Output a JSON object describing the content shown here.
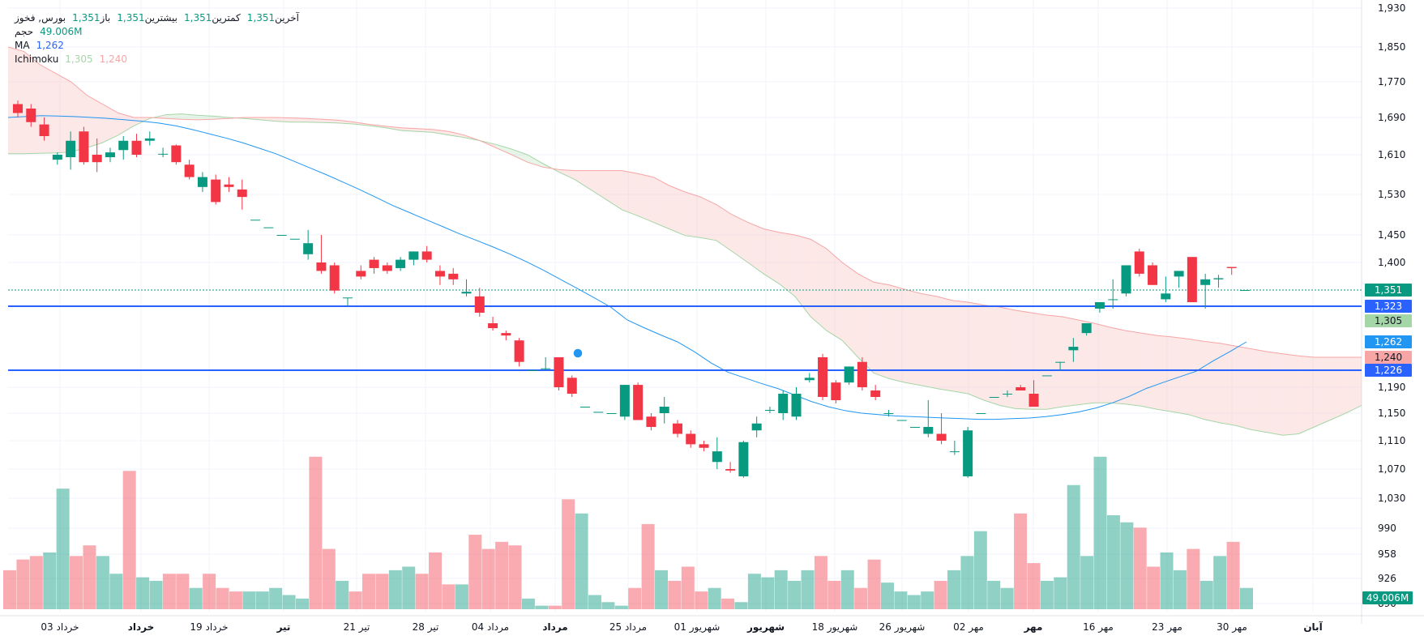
{
  "chart_data": {
    "type": "candlestick",
    "symbol": "فخوز",
    "market": "بورس",
    "ohlc_header": {
      "open_label": "باز",
      "open": "1,351",
      "high_label": "بیشترین",
      "high": "1,351",
      "low_label": "کمترین",
      "low": "1,351",
      "close_label": "آخرین",
      "close": "1,351"
    },
    "volume_label": "حجم",
    "volume_value": "49.006M",
    "ma_label": "MA",
    "ma_value": "1,262",
    "ichimoku_label": "Ichimoku",
    "ichimoku_values": [
      "1,305",
      "1,240"
    ],
    "y_axis_ticks": [
      "1,930",
      "1,850",
      "1,770",
      "1,690",
      "1,610",
      "1,530",
      "1,450",
      "1,400",
      "1,190",
      "1,150",
      "1,110",
      "1,070",
      "1,030",
      "990",
      "958",
      "926",
      "890"
    ],
    "price_badges": [
      {
        "value": "1,351",
        "color": "#089981",
        "text_color": "#ffffff"
      },
      {
        "value": "1,323",
        "color": "#2962ff",
        "text_color": "#ffffff"
      },
      {
        "value": "1,305",
        "color": "#a5d6a7",
        "text_color": "#131722"
      },
      {
        "value": "1,262",
        "color": "#2196f3",
        "text_color": "#ffffff"
      },
      {
        "value": "1,240",
        "color": "#f7a5a5",
        "text_color": "#131722"
      },
      {
        "value": "1,226",
        "color": "#2962ff",
        "text_color": "#ffffff"
      }
    ],
    "volume_badge": {
      "value": "49.006M",
      "color": "#089981"
    },
    "x_axis_labels": [
      {
        "label": "03 خرداد",
        "bold": false
      },
      {
        "label": "خرداد",
        "bold": true
      },
      {
        "label": "19 خرداد",
        "bold": false
      },
      {
        "label": "تیر",
        "bold": true
      },
      {
        "label": "21 تیر",
        "bold": false
      },
      {
        "label": "28 تیر",
        "bold": false
      },
      {
        "label": "04 مرداد",
        "bold": false
      },
      {
        "label": "مرداد",
        "bold": true
      },
      {
        "label": "25 مرداد",
        "bold": false
      },
      {
        "label": "01 شهریور",
        "bold": false
      },
      {
        "label": "شهریور",
        "bold": true
      },
      {
        "label": "18 شهریور",
        "bold": false
      },
      {
        "label": "26 شهریور",
        "bold": false
      },
      {
        "label": "02 مهر",
        "bold": false
      },
      {
        "label": "مهر",
        "bold": true
      },
      {
        "label": "16 مهر",
        "bold": false
      },
      {
        "label": "23 مهر",
        "bold": false
      },
      {
        "label": "30 مهر",
        "bold": false
      },
      {
        "label": "آبان",
        "bold": true
      }
    ],
    "horizontal_lines": [
      1323,
      1226
    ],
    "last_price_line": 1351,
    "candles": [
      {
        "o": 1720,
        "h": 1728,
        "l": 1690,
        "c": 1700
      },
      {
        "o": 1710,
        "h": 1720,
        "l": 1670,
        "c": 1680
      },
      {
        "o": 1675,
        "h": 1690,
        "l": 1640,
        "c": 1650
      },
      {
        "o": 1600,
        "h": 1615,
        "l": 1590,
        "c": 1610
      },
      {
        "o": 1605,
        "h": 1660,
        "l": 1580,
        "c": 1640
      },
      {
        "o": 1660,
        "h": 1670,
        "l": 1590,
        "c": 1595
      },
      {
        "o": 1610,
        "h": 1645,
        "l": 1575,
        "c": 1595
      },
      {
        "o": 1605,
        "h": 1625,
        "l": 1595,
        "c": 1615
      },
      {
        "o": 1620,
        "h": 1650,
        "l": 1600,
        "c": 1640
      },
      {
        "o": 1640,
        "h": 1655,
        "l": 1605,
        "c": 1610
      },
      {
        "o": 1640,
        "h": 1660,
        "l": 1630,
        "c": 1645
      },
      {
        "o": 1612,
        "h": 1625,
        "l": 1605,
        "c": 1612
      },
      {
        "o": 1630,
        "h": 1632,
        "l": 1590,
        "c": 1595
      },
      {
        "o": 1590,
        "h": 1600,
        "l": 1560,
        "c": 1565
      },
      {
        "o": 1545,
        "h": 1575,
        "l": 1535,
        "c": 1565
      },
      {
        "o": 1560,
        "h": 1570,
        "l": 1510,
        "c": 1515
      },
      {
        "o": 1550,
        "h": 1565,
        "l": 1535,
        "c": 1545
      },
      {
        "o": 1540,
        "h": 1560,
        "l": 1500,
        "c": 1525
      },
      {
        "o": 1480,
        "h": 1480,
        "l": 1480,
        "c": 1480
      },
      {
        "o": 1465,
        "h": 1465,
        "l": 1465,
        "c": 1465
      },
      {
        "o": 1450,
        "h": 1450,
        "l": 1450,
        "c": 1450
      },
      {
        "o": 1443,
        "h": 1443,
        "l": 1443,
        "c": 1443
      },
      {
        "o": 1415,
        "h": 1460,
        "l": 1405,
        "c": 1435
      },
      {
        "o": 1400,
        "h": 1450,
        "l": 1380,
        "c": 1385
      },
      {
        "o": 1395,
        "h": 1400,
        "l": 1345,
        "c": 1350
      },
      {
        "o": 1338,
        "h": 1338,
        "l": 1323,
        "c": 1338
      },
      {
        "o": 1385,
        "h": 1395,
        "l": 1370,
        "c": 1375
      },
      {
        "o": 1405,
        "h": 1410,
        "l": 1380,
        "c": 1390
      },
      {
        "o": 1395,
        "h": 1400,
        "l": 1380,
        "c": 1385
      },
      {
        "o": 1390,
        "h": 1410,
        "l": 1385,
        "c": 1405
      },
      {
        "o": 1405,
        "h": 1420,
        "l": 1395,
        "c": 1420
      },
      {
        "o": 1420,
        "h": 1430,
        "l": 1400,
        "c": 1405
      },
      {
        "o": 1385,
        "h": 1395,
        "l": 1360,
        "c": 1375
      },
      {
        "o": 1380,
        "h": 1390,
        "l": 1360,
        "c": 1370
      },
      {
        "o": 1345,
        "h": 1370,
        "l": 1340,
        "c": 1348
      },
      {
        "o": 1340,
        "h": 1355,
        "l": 1310,
        "c": 1315
      },
      {
        "o": 1300,
        "h": 1310,
        "l": 1285,
        "c": 1290
      },
      {
        "o": 1280,
        "h": 1285,
        "l": 1265,
        "c": 1275
      },
      {
        "o": 1265,
        "h": 1270,
        "l": 1230,
        "c": 1235
      },
      {
        "o": 1226,
        "h": 1226,
        "l": 1226,
        "c": 1226
      },
      {
        "o": 1228,
        "h": 1240,
        "l": 1225,
        "c": 1228
      },
      {
        "o": 1240,
        "h": 1240,
        "l": 1185,
        "c": 1190
      },
      {
        "o": 1210,
        "h": 1215,
        "l": 1175,
        "c": 1180
      },
      {
        "o": 1160,
        "h": 1160,
        "l": 1160,
        "c": 1160
      },
      {
        "o": 1152,
        "h": 1152,
        "l": 1152,
        "c": 1152
      },
      {
        "o": 1150,
        "h": 1150,
        "l": 1150,
        "c": 1150
      },
      {
        "o": 1145,
        "h": 1195,
        "l": 1140,
        "c": 1195
      },
      {
        "o": 1195,
        "h": 1200,
        "l": 1140,
        "c": 1140
      },
      {
        "o": 1145,
        "h": 1150,
        "l": 1125,
        "c": 1130
      },
      {
        "o": 1150,
        "h": 1175,
        "l": 1135,
        "c": 1160
      },
      {
        "o": 1135,
        "h": 1140,
        "l": 1115,
        "c": 1120
      },
      {
        "o": 1120,
        "h": 1125,
        "l": 1100,
        "c": 1105
      },
      {
        "o": 1105,
        "h": 1110,
        "l": 1095,
        "c": 1100
      },
      {
        "o": 1080,
        "h": 1115,
        "l": 1070,
        "c": 1095
      },
      {
        "o": 1070,
        "h": 1080,
        "l": 1065,
        "c": 1068
      },
      {
        "o": 1060,
        "h": 1110,
        "l": 1058,
        "c": 1108
      },
      {
        "o": 1125,
        "h": 1145,
        "l": 1115,
        "c": 1135
      },
      {
        "o": 1155,
        "h": 1160,
        "l": 1150,
        "c": 1155
      },
      {
        "o": 1150,
        "h": 1185,
        "l": 1140,
        "c": 1180
      },
      {
        "o": 1145,
        "h": 1190,
        "l": 1140,
        "c": 1180
      },
      {
        "o": 1205,
        "h": 1220,
        "l": 1200,
        "c": 1210
      },
      {
        "o": 1240,
        "h": 1245,
        "l": 1170,
        "c": 1175
      },
      {
        "o": 1200,
        "h": 1205,
        "l": 1165,
        "c": 1170
      },
      {
        "o": 1200,
        "h": 1230,
        "l": 1195,
        "c": 1230
      },
      {
        "o": 1235,
        "h": 1240,
        "l": 1185,
        "c": 1190
      },
      {
        "o": 1185,
        "h": 1195,
        "l": 1170,
        "c": 1175
      },
      {
        "o": 1150,
        "h": 1155,
        "l": 1145,
        "c": 1150
      },
      {
        "o": 1140,
        "h": 1140,
        "l": 1140,
        "c": 1140
      },
      {
        "o": 1130,
        "h": 1130,
        "l": 1130,
        "c": 1130
      },
      {
        "o": 1120,
        "h": 1170,
        "l": 1115,
        "c": 1130
      },
      {
        "o": 1120,
        "h": 1150,
        "l": 1105,
        "c": 1110
      },
      {
        "o": 1095,
        "h": 1110,
        "l": 1090,
        "c": 1095
      },
      {
        "o": 1060,
        "h": 1130,
        "l": 1058,
        "c": 1125
      },
      {
        "o": 1150,
        "h": 1150,
        "l": 1150,
        "c": 1150
      },
      {
        "o": 1175,
        "h": 1175,
        "l": 1175,
        "c": 1175
      },
      {
        "o": 1180,
        "h": 1185,
        "l": 1175,
        "c": 1180
      },
      {
        "o": 1190,
        "h": 1195,
        "l": 1185,
        "c": 1185
      },
      {
        "o": 1180,
        "h": 1205,
        "l": 1160,
        "c": 1160
      },
      {
        "o": 1215,
        "h": 1215,
        "l": 1215,
        "c": 1215
      },
      {
        "o": 1235,
        "h": 1235,
        "l": 1225,
        "c": 1235
      },
      {
        "o": 1250,
        "h": 1270,
        "l": 1235,
        "c": 1255
      },
      {
        "o": 1280,
        "h": 1300,
        "l": 1275,
        "c": 1300
      },
      {
        "o": 1320,
        "h": 1330,
        "l": 1315,
        "c": 1330
      },
      {
        "o": 1335,
        "h": 1370,
        "l": 1320,
        "c": 1335
      },
      {
        "o": 1345,
        "h": 1395,
        "l": 1340,
        "c": 1395
      },
      {
        "o": 1420,
        "h": 1425,
        "l": 1375,
        "c": 1380
      },
      {
        "o": 1395,
        "h": 1400,
        "l": 1360,
        "c": 1360
      },
      {
        "o": 1335,
        "h": 1375,
        "l": 1330,
        "c": 1345
      },
      {
        "o": 1375,
        "h": 1385,
        "l": 1355,
        "c": 1385
      },
      {
        "o": 1410,
        "h": 1410,
        "l": 1335,
        "c": 1330
      },
      {
        "o": 1360,
        "h": 1380,
        "l": 1320,
        "c": 1370
      },
      {
        "o": 1370,
        "h": 1378,
        "l": 1355,
        "c": 1372
      },
      {
        "o": 1392,
        "h": 1392,
        "l": 1378,
        "c": 1390
      },
      {
        "o": 1351,
        "h": 1351,
        "l": 1351,
        "c": 1351
      }
    ],
    "volumes": [
      22,
      28,
      30,
      32,
      68,
      30,
      36,
      30,
      20,
      78,
      18,
      16,
      20,
      20,
      12,
      20,
      12,
      10,
      10,
      10,
      12,
      8,
      6,
      86,
      34,
      16,
      10,
      20,
      20,
      22,
      24,
      20,
      32,
      14,
      14,
      42,
      34,
      38,
      36,
      6,
      2,
      2,
      62,
      54,
      8,
      4,
      2,
      12,
      48,
      22,
      16,
      24,
      10,
      12,
      6,
      4,
      20,
      18,
      22,
      16,
      22,
      30,
      16,
      22,
      12,
      28,
      15,
      10,
      8,
      10,
      16,
      22,
      30,
      44,
      16,
      12,
      54,
      26,
      16,
      18,
      70,
      30,
      86,
      53,
      49,
      46,
      24,
      32,
      22,
      34,
      16,
      30,
      38,
      12
    ],
    "volume_colors": "mixed",
    "ma_series": [
      1690,
      1692,
      1694,
      1693,
      1692,
      1690,
      1688,
      1685,
      1682,
      1678,
      1672,
      1664,
      1655,
      1646,
      1636,
      1624,
      1612,
      1598,
      1584,
      1570,
      1555,
      1540,
      1524,
      1508,
      1494,
      1480,
      1466,
      1452,
      1440,
      1428,
      1415,
      1401,
      1386,
      1370,
      1354,
      1338,
      1322,
      1306,
      1291,
      1276,
      1262,
      1248,
      1234,
      1222,
      1210,
      1198,
      1188,
      1178,
      1168,
      1160,
      1154,
      1150,
      1148,
      1146,
      1145,
      1144,
      1143,
      1142,
      1141,
      1141,
      1142,
      1143,
      1145,
      1148,
      1152,
      1158,
      1166,
      1176,
      1188,
      1200,
      1212,
      1224,
      1236,
      1248,
      1262
    ],
    "ichimoku_spans": {
      "span_a": [
        1612,
        1612,
        1613,
        1614,
        1616,
        1625,
        1636,
        1652,
        1672,
        1688,
        1696,
        1698,
        1695,
        1693,
        1690,
        1688,
        1685,
        1682,
        1680,
        1680,
        1679,
        1678,
        1676,
        1672,
        1668,
        1662,
        1660,
        1658,
        1652,
        1647,
        1640,
        1632,
        1622,
        1610,
        1592,
        1575,
        1560,
        1540,
        1520,
        1500,
        1488,
        1475,
        1462,
        1449,
        1445,
        1440,
        1420,
        1400,
        1380,
        1362,
        1340,
        1310,
        1285,
        1265,
        1240,
        1220,
        1208,
        1200,
        1194,
        1188,
        1184,
        1180,
        1170,
        1162,
        1157,
        1156,
        1156,
        1160,
        1163,
        1166,
        1166,
        1164,
        1161,
        1156,
        1152,
        1148,
        1141,
        1136,
        1132,
        1126,
        1122,
        1118,
        1120,
        1130,
        1140,
        1150,
        1162
      ],
      "span_b": [
        1850,
        1840,
        1810,
        1790,
        1770,
        1740,
        1720,
        1700,
        1690,
        1690,
        1688,
        1686,
        1685,
        1686,
        1688,
        1690,
        1690,
        1690,
        1689,
        1688,
        1686,
        1684,
        1680,
        1675,
        1671,
        1668,
        1666,
        1664,
        1660,
        1652,
        1640,
        1625,
        1610,
        1595,
        1585,
        1580,
        1578,
        1578,
        1578,
        1578,
        1572,
        1565,
        1548,
        1535,
        1525,
        1510,
        1490,
        1475,
        1462,
        1455,
        1450,
        1442,
        1425,
        1400,
        1380,
        1365,
        1360,
        1352,
        1345,
        1340,
        1333,
        1330,
        1325,
        1322,
        1318,
        1315,
        1312,
        1310,
        1306,
        1300,
        1292,
        1285,
        1280,
        1275,
        1272,
        1268,
        1263,
        1260,
        1256,
        1252,
        1248,
        1245,
        1242,
        1240,
        1240,
        1240,
        1240
      ]
    }
  },
  "marker_dot_color": "#2196f3"
}
